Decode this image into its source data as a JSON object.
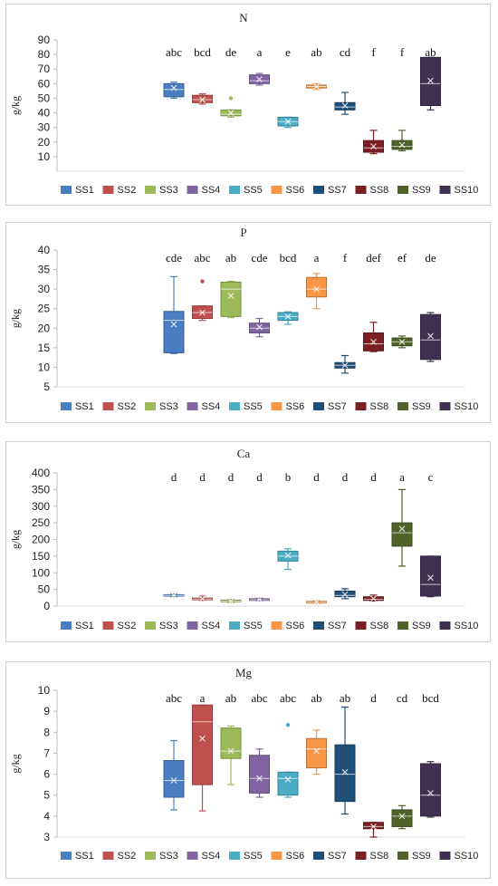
{
  "colors": {
    "SS1": "#4a7ec2",
    "SS2": "#c0504d",
    "SS3": "#9bbb59",
    "SS4": "#8064a2",
    "SS5": "#4bacc6",
    "SS6": "#f79646",
    "SS7": "#1f4e79",
    "SS8": "#7b1f22",
    "SS9": "#4f6228",
    "SS10": "#403152"
  },
  "chart_data": [
    {
      "type": "box",
      "title": "N",
      "ylabel": "g/kg",
      "ylim": [
        0,
        90
      ],
      "yticks": [
        10,
        20,
        30,
        40,
        50,
        60,
        70,
        80,
        90
      ],
      "categories": [
        "SS1",
        "SS2",
        "SS3",
        "SS4",
        "SS5",
        "SS6",
        "SS7",
        "SS8",
        "SS9",
        "SS10"
      ],
      "boxes": [
        {
          "name": "SS1",
          "min": 50,
          "q1": 51,
          "median": 56,
          "q3": 60,
          "max": 61,
          "mean": 57,
          "outliers": []
        },
        {
          "name": "SS2",
          "min": 46,
          "q1": 47,
          "median": 49,
          "q3": 52,
          "max": 53,
          "mean": 49,
          "outliers": []
        },
        {
          "name": "SS3",
          "min": 37,
          "q1": 38,
          "median": 39,
          "q3": 42,
          "max": 42,
          "mean": 40,
          "outliers": [
            50
          ]
        },
        {
          "name": "SS4",
          "min": 59,
          "q1": 60,
          "median": 62,
          "q3": 66,
          "max": 67,
          "mean": 63,
          "outliers": []
        },
        {
          "name": "SS5",
          "min": 30,
          "q1": 31,
          "median": 34,
          "q3": 37,
          "max": 37,
          "mean": 34,
          "outliers": []
        },
        {
          "name": "SS6",
          "min": 56,
          "q1": 57,
          "median": 58,
          "q3": 59,
          "max": 60,
          "mean": 58,
          "outliers": []
        },
        {
          "name": "SS7",
          "min": 39,
          "q1": 42,
          "median": 44,
          "q3": 47,
          "max": 54,
          "mean": 45,
          "outliers": []
        },
        {
          "name": "SS8",
          "min": 12,
          "q1": 13,
          "median": 16,
          "q3": 21,
          "max": 28,
          "mean": 17,
          "outliers": []
        },
        {
          "name": "SS9",
          "min": 14,
          "q1": 15,
          "median": 17,
          "q3": 21,
          "max": 28,
          "mean": 18,
          "outliers": []
        },
        {
          "name": "SS10",
          "min": 42,
          "q1": 45,
          "median": 60,
          "q3": 78,
          "max": 78,
          "mean": 62,
          "outliers": []
        }
      ],
      "letters": [
        "abc",
        "bcd",
        "de",
        "a",
        "e",
        "ab",
        "cd",
        "f",
        "f",
        "ab"
      ],
      "legend": [
        "SS1",
        "SS2",
        "SS3",
        "SS4",
        "SS5",
        "SS6",
        "SS7",
        "SS8",
        "SS9",
        "SS10"
      ]
    },
    {
      "type": "box",
      "title": "P",
      "ylabel": "g/kg",
      "ylim": [
        5,
        40
      ],
      "yticks": [
        5,
        10,
        15,
        20,
        25,
        30,
        35,
        40
      ],
      "categories": [
        "SS1",
        "SS2",
        "SS3",
        "SS4",
        "SS5",
        "SS6",
        "SS7",
        "SS8",
        "SS9",
        "SS10"
      ],
      "boxes": [
        {
          "name": "SS1",
          "min": 13.5,
          "q1": 13.7,
          "median": 22,
          "q3": 24.3,
          "max": 33.2,
          "mean": 21,
          "outliers": []
        },
        {
          "name": "SS2",
          "min": 22,
          "q1": 22.5,
          "median": 24,
          "q3": 25.7,
          "max": 25.7,
          "mean": 24,
          "outliers": [
            32
          ]
        },
        {
          "name": "SS3",
          "min": 22.7,
          "q1": 23,
          "median": 30,
          "q3": 31.8,
          "max": 32,
          "mean": 28.3,
          "outliers": []
        },
        {
          "name": "SS4",
          "min": 17.8,
          "q1": 18.8,
          "median": 20,
          "q3": 21.3,
          "max": 22.5,
          "mean": 20.3,
          "outliers": []
        },
        {
          "name": "SS5",
          "min": 21,
          "q1": 22,
          "median": 23,
          "q3": 24,
          "max": 24.2,
          "mean": 23,
          "outliers": []
        },
        {
          "name": "SS6",
          "min": 25,
          "q1": 28,
          "median": 30,
          "q3": 33,
          "max": 34,
          "mean": 30,
          "outliers": []
        },
        {
          "name": "SS7",
          "min": 8.5,
          "q1": 9.8,
          "median": 10.5,
          "q3": 11.2,
          "max": 13,
          "mean": 10.5,
          "outliers": []
        },
        {
          "name": "SS8",
          "min": 14,
          "q1": 14.2,
          "median": 16,
          "q3": 18.8,
          "max": 21.5,
          "mean": 16.5,
          "outliers": []
        },
        {
          "name": "SS9",
          "min": 15,
          "q1": 15.5,
          "median": 16.5,
          "q3": 17.5,
          "max": 18,
          "mean": 16.5,
          "outliers": []
        },
        {
          "name": "SS10",
          "min": 11.5,
          "q1": 12,
          "median": 17,
          "q3": 23.5,
          "max": 24,
          "mean": 18,
          "outliers": []
        }
      ],
      "letters": [
        "cde",
        "abc",
        "ab",
        "cde",
        "bcd",
        "a",
        "f",
        "def",
        "ef",
        "de"
      ],
      "legend": [
        "SS1",
        "SS2",
        "SS3",
        "SS4",
        "SS5",
        "SS6",
        "SS7",
        "SS8",
        "SS9",
        "SS10"
      ]
    },
    {
      "type": "box",
      "title": "Ca",
      "ylabel": "g/kg",
      "ylim": [
        0,
        400
      ],
      "yticks": [
        0,
        50,
        100,
        150,
        200,
        250,
        300,
        350,
        400
      ],
      "categories": [
        "SS1",
        "SS2",
        "SS3",
        "SS4",
        "SS5",
        "SS6",
        "SS7",
        "SS8",
        "SS9",
        "SS10"
      ],
      "boxes": [
        {
          "name": "SS1",
          "min": 28,
          "q1": 30,
          "median": 32,
          "q3": 34,
          "max": 36,
          "mean": 32,
          "outliers": []
        },
        {
          "name": "SS2",
          "min": 17,
          "q1": 19,
          "median": 21,
          "q3": 24,
          "max": 30,
          "mean": 22,
          "outliers": []
        },
        {
          "name": "SS3",
          "min": 11,
          "q1": 13,
          "median": 15,
          "q3": 18,
          "max": 20,
          "mean": 15,
          "outliers": []
        },
        {
          "name": "SS4",
          "min": 16,
          "q1": 17,
          "median": 19,
          "q3": 22,
          "max": 24,
          "mean": 20,
          "outliers": []
        },
        {
          "name": "SS5",
          "min": 110,
          "q1": 135,
          "median": 150,
          "q3": 165,
          "max": 172,
          "mean": 152,
          "outliers": []
        },
        {
          "name": "SS6",
          "min": 8,
          "q1": 9,
          "median": 11,
          "q3": 14,
          "max": 16,
          "mean": 12,
          "outliers": []
        },
        {
          "name": "SS7",
          "min": 22,
          "q1": 28,
          "median": 32,
          "q3": 45,
          "max": 52,
          "mean": 35,
          "outliers": []
        },
        {
          "name": "SS8",
          "min": 15,
          "q1": 17,
          "median": 20,
          "q3": 28,
          "max": 33,
          "mean": 22,
          "outliers": []
        },
        {
          "name": "SS9",
          "min": 120,
          "q1": 180,
          "median": 220,
          "q3": 250,
          "max": 350,
          "mean": 232,
          "outliers": []
        },
        {
          "name": "SS10",
          "min": 28,
          "q1": 30,
          "median": 65,
          "q3": 150,
          "max": 150,
          "mean": 85,
          "outliers": []
        }
      ],
      "letters": [
        "d",
        "d",
        "d",
        "d",
        "b",
        "d",
        "d",
        "d",
        "a",
        "c"
      ],
      "legend": [
        "SS1",
        "SS2",
        "SS3",
        "SS4",
        "SS5",
        "SS6",
        "SS7",
        "SS8",
        "SS9",
        "SS10"
      ]
    },
    {
      "type": "box",
      "title": "Mg",
      "ylabel": "g/kg",
      "ylim": [
        3,
        10
      ],
      "yticks": [
        3,
        4,
        5,
        6,
        7,
        8,
        9,
        10
      ],
      "categories": [
        "SS1",
        "SS2",
        "SS3",
        "SS4",
        "SS5",
        "SS6",
        "SS7",
        "SS8",
        "SS9",
        "SS10"
      ],
      "boxes": [
        {
          "name": "SS1",
          "min": 4.3,
          "q1": 4.9,
          "median": 5.7,
          "q3": 6.65,
          "max": 7.6,
          "mean": 5.7,
          "outliers": []
        },
        {
          "name": "SS2",
          "min": 4.25,
          "q1": 5.5,
          "median": 8.5,
          "q3": 9.3,
          "max": 9.3,
          "mean": 7.7,
          "outliers": []
        },
        {
          "name": "SS3",
          "min": 5.5,
          "q1": 6.75,
          "median": 7.1,
          "q3": 8.2,
          "max": 8.3,
          "mean": 7.1,
          "outliers": []
        },
        {
          "name": "SS4",
          "min": 4.9,
          "q1": 5.1,
          "median": 5.8,
          "q3": 6.9,
          "max": 7.2,
          "mean": 5.8,
          "outliers": []
        },
        {
          "name": "SS5",
          "min": 4.9,
          "q1": 5.0,
          "median": 5.8,
          "q3": 6.1,
          "max": 6.1,
          "mean": 5.75,
          "outliers": [
            8.35
          ]
        },
        {
          "name": "SS6",
          "min": 6.0,
          "q1": 6.3,
          "median": 7.2,
          "q3": 7.7,
          "max": 8.1,
          "mean": 7.1,
          "outliers": []
        },
        {
          "name": "SS7",
          "min": 4.1,
          "q1": 4.7,
          "median": 6.0,
          "q3": 7.4,
          "max": 9.2,
          "mean": 6.1,
          "outliers": []
        },
        {
          "name": "SS8",
          "min": 3.0,
          "q1": 3.4,
          "median": 3.5,
          "q3": 3.7,
          "max": 3.7,
          "mean": 3.5,
          "outliers": []
        },
        {
          "name": "SS9",
          "min": 3.4,
          "q1": 3.5,
          "median": 4.0,
          "q3": 4.3,
          "max": 4.5,
          "mean": 4.0,
          "outliers": []
        },
        {
          "name": "SS10",
          "min": 3.95,
          "q1": 4.0,
          "median": 5.0,
          "q3": 6.5,
          "max": 6.6,
          "mean": 5.1,
          "outliers": []
        }
      ],
      "letters": [
        "abc",
        "a",
        "ab",
        "abc",
        "abc",
        "ab",
        "ab",
        "d",
        "cd",
        "bcd"
      ],
      "legend": [
        "SS1",
        "SS2",
        "SS3",
        "SS4",
        "SS5",
        "SS6",
        "SS7",
        "SS8",
        "SS9",
        "SS10"
      ]
    }
  ]
}
